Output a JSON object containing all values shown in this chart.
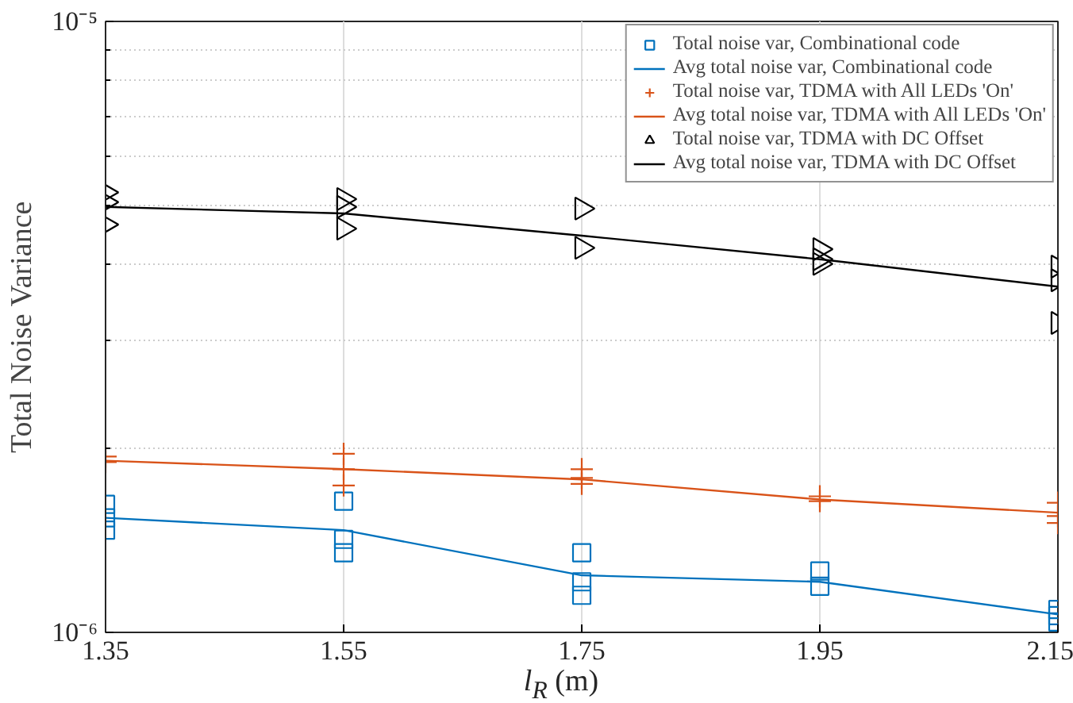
{
  "chart_data": {
    "type": "scatter",
    "xlabel": "l$_{R}$ (m)",
    "ylabel": "Total Noise Variance",
    "log": "y",
    "xlim": [
      1.35,
      2.15
    ],
    "xticks": [
      1.35,
      1.55,
      1.75,
      1.95,
      2.15
    ],
    "ylim": [
      1e-06,
      1e-05
    ],
    "yticks": [
      {
        "value": 1e-06,
        "label": "10⁻⁶"
      },
      {
        "value": 1e-05,
        "label": "10⁻⁵"
      }
    ],
    "grid": true,
    "legend": "top right",
    "series": [
      {
        "name": "Total noise var, Combinational code",
        "type": "scatter",
        "marker": "square",
        "color": "#0072bd",
        "x": [
          1.35,
          1.35,
          1.35,
          1.55,
          1.55,
          1.55,
          1.75,
          1.75,
          1.75,
          1.95,
          1.95,
          2.15,
          2.15,
          2.15
        ],
        "values": [
          1.62e-06,
          1.54e-06,
          1.47e-06,
          1.64e-06,
          1.42e-06,
          1.35e-06,
          1.35e-06,
          1.21e-06,
          1.15e-06,
          1.26e-06,
          1.19e-06,
          1.09e-06,
          1.065e-06,
          1.04e-06
        ]
      },
      {
        "name": "Avg total noise var, Combinational code",
        "type": "line",
        "line_style": "solid",
        "color": "#0072bd",
        "x": [
          1.35,
          1.55,
          1.75,
          1.95,
          2.15
        ],
        "values": [
          1.54e-06,
          1.47e-06,
          1.24e-06,
          1.21e-06,
          1.07e-06
        ]
      },
      {
        "name": "Total noise var, TDMA with All LEDs 'On'",
        "type": "scatter",
        "marker": "cross",
        "color": "#d95319",
        "x": [
          1.35,
          1.35,
          1.55,
          1.55,
          1.55,
          1.75,
          1.75,
          1.75,
          1.95,
          1.95,
          2.15,
          2.15,
          2.15
        ],
        "values": [
          1.94e-06,
          1.9e-06,
          1.96e-06,
          1.85e-06,
          1.74e-06,
          1.85e-06,
          1.79e-06,
          1.75e-06,
          1.67e-06,
          1.64e-06,
          1.63e-06,
          1.55e-06,
          1.51e-06
        ]
      },
      {
        "name": "Avg total noise var, TDMA with All LEDs 'On'",
        "type": "line",
        "line_style": "solid",
        "color": "#d95319",
        "x": [
          1.35,
          1.55,
          1.75,
          1.95,
          2.15
        ],
        "values": [
          1.91e-06,
          1.85e-06,
          1.78e-06,
          1.65e-06,
          1.57e-06
        ]
      },
      {
        "name": "Total noise var, TDMA with DC Offset",
        "type": "scatter",
        "marker": "triangle",
        "color": "#000000",
        "x": [
          1.35,
          1.35,
          1.35,
          1.55,
          1.55,
          1.55,
          1.75,
          1.75,
          1.95,
          1.95,
          1.95,
          2.15,
          2.15,
          2.15
        ],
        "values": [
          5.25e-06,
          5.06e-06,
          4.65e-06,
          5.12e-06,
          4.97e-06,
          4.58e-06,
          4.94e-06,
          4.26e-06,
          4.24e-06,
          4.08e-06,
          4.01e-06,
          3.97e-06,
          3.77e-06,
          3.21e-06
        ]
      },
      {
        "name": "Avg total noise var, TDMA with DC Offset",
        "type": "line",
        "line_style": "solid",
        "color": "#000000",
        "x": [
          1.35,
          1.55,
          1.75,
          1.95,
          2.15
        ],
        "values": [
          4.97e-06,
          4.85e-06,
          4.46e-06,
          4.08e-06,
          3.68e-06
        ]
      }
    ]
  }
}
